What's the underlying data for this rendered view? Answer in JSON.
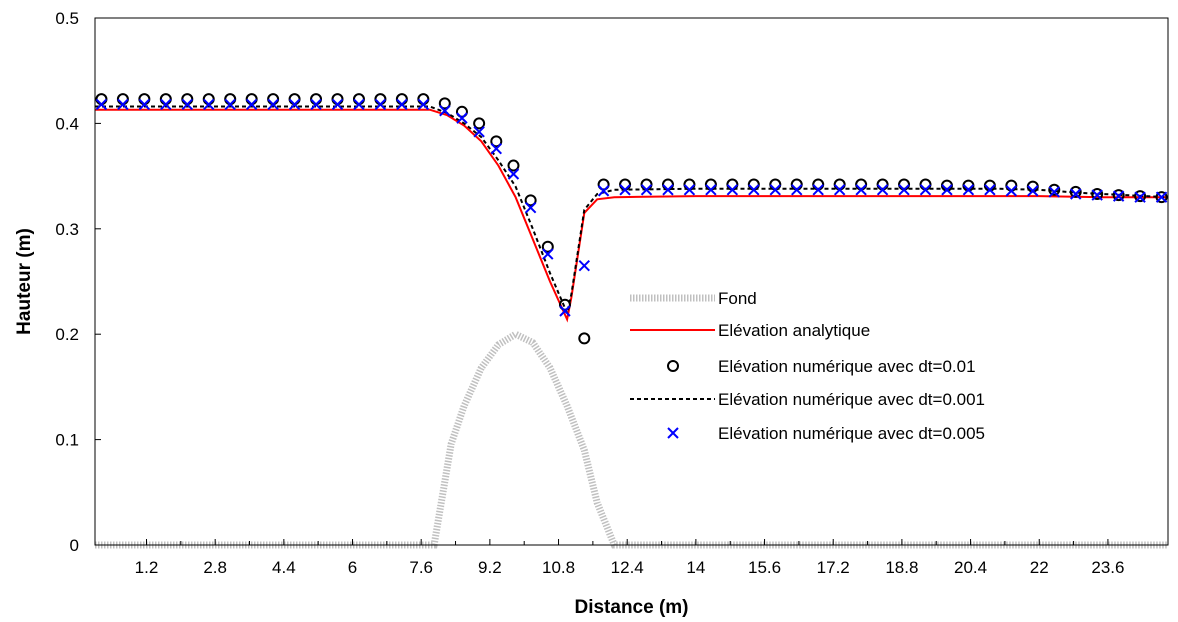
{
  "chart_data": {
    "type": "line",
    "title": "",
    "xlabel": "Distance (m)",
    "ylabel": "Hauteur (m)",
    "xlim": [
      0,
      25
    ],
    "ylim": [
      0,
      0.5
    ],
    "x_tick_labels": [
      "1.2",
      "2.8",
      "4.4",
      "6",
      "7.6",
      "9.2",
      "10.8",
      "12.4",
      "14",
      "15.6",
      "17.2",
      "18.8",
      "20.4",
      "22",
      "23.6"
    ],
    "y_tick_labels": [
      "0",
      "0.1",
      "0.2",
      "0.3",
      "0.4",
      "0.5"
    ],
    "legend_position": "center-right",
    "grid": false,
    "series": [
      {
        "name": "Fond",
        "style": "thick-gray-line",
        "color": "#c0c0c0",
        "x": [
          0,
          7.9,
          8.3,
          8.6,
          9.0,
          9.4,
          9.8,
          10.2,
          10.6,
          11.0,
          11.4,
          11.7,
          12.1,
          25
        ],
        "y": [
          0,
          0,
          0.096,
          0.132,
          0.168,
          0.19,
          0.2,
          0.192,
          0.168,
          0.132,
          0.09,
          0.04,
          0,
          0
        ]
      },
      {
        "name": "Elévation analytique",
        "style": "solid-line",
        "color": "#ff0000",
        "x": [
          0,
          7.8,
          8.2,
          8.6,
          9.0,
          9.4,
          9.8,
          10.2,
          10.6,
          11.0,
          11.1,
          11.4,
          11.7,
          12.1,
          14,
          18,
          22,
          23.5,
          25
        ],
        "y": [
          0.413,
          0.413,
          0.408,
          0.398,
          0.383,
          0.36,
          0.33,
          0.29,
          0.25,
          0.214,
          0.235,
          0.315,
          0.328,
          0.33,
          0.331,
          0.331,
          0.331,
          0.33,
          0.33
        ]
      },
      {
        "name": "Elévation numérique avec dt=0.01",
        "style": "circle-markers",
        "color": "#000000",
        "x": [
          0.15,
          0.65,
          1.15,
          1.65,
          2.15,
          2.65,
          3.15,
          3.65,
          4.15,
          4.65,
          5.15,
          5.65,
          6.15,
          6.65,
          7.15,
          7.65,
          8.15,
          8.55,
          8.95,
          9.35,
          9.75,
          10.15,
          10.55,
          10.95,
          11.4,
          11.85,
          12.35,
          12.85,
          13.35,
          13.85,
          14.35,
          14.85,
          15.35,
          15.85,
          16.35,
          16.85,
          17.35,
          17.85,
          18.35,
          18.85,
          19.35,
          19.85,
          20.35,
          20.85,
          21.35,
          21.85,
          22.35,
          22.85,
          23.35,
          23.85,
          24.35,
          24.85
        ],
        "y": [
          0.423,
          0.423,
          0.423,
          0.423,
          0.423,
          0.423,
          0.423,
          0.423,
          0.423,
          0.423,
          0.423,
          0.423,
          0.423,
          0.423,
          0.423,
          0.423,
          0.419,
          0.411,
          0.4,
          0.383,
          0.36,
          0.327,
          0.283,
          0.228,
          0.196,
          0.342,
          0.342,
          0.342,
          0.342,
          0.342,
          0.342,
          0.342,
          0.342,
          0.342,
          0.342,
          0.342,
          0.342,
          0.342,
          0.342,
          0.342,
          0.342,
          0.341,
          0.341,
          0.341,
          0.341,
          0.34,
          0.337,
          0.335,
          0.333,
          0.332,
          0.331,
          0.33
        ]
      },
      {
        "name": "Elévation numérique avec dt=0.001",
        "style": "dashed-line",
        "color": "#000000",
        "x": [
          0,
          7.8,
          8.2,
          8.6,
          9.0,
          9.4,
          9.8,
          10.2,
          10.6,
          11.0,
          11.1,
          11.4,
          11.7,
          12.1,
          14,
          18,
          21,
          22,
          23,
          24,
          25
        ],
        "y": [
          0.416,
          0.416,
          0.41,
          0.4,
          0.387,
          0.365,
          0.34,
          0.3,
          0.258,
          0.22,
          0.238,
          0.318,
          0.333,
          0.337,
          0.338,
          0.338,
          0.338,
          0.337,
          0.334,
          0.332,
          0.33
        ]
      },
      {
        "name": "Elévation numérique avec dt=0.005",
        "style": "x-markers",
        "color": "#0000ff",
        "x": [
          0.15,
          0.65,
          1.15,
          1.65,
          2.15,
          2.65,
          3.15,
          3.65,
          4.15,
          4.65,
          5.15,
          5.65,
          6.15,
          6.65,
          7.15,
          7.65,
          8.15,
          8.55,
          8.95,
          9.35,
          9.75,
          10.15,
          10.55,
          10.95,
          11.4,
          11.85,
          12.35,
          12.85,
          13.35,
          13.85,
          14.35,
          14.85,
          15.35,
          15.85,
          16.35,
          16.85,
          17.35,
          17.85,
          18.35,
          18.85,
          19.35,
          19.85,
          20.35,
          20.85,
          21.35,
          21.85,
          22.35,
          22.85,
          23.35,
          23.85,
          24.35,
          24.85
        ],
        "y": [
          0.418,
          0.418,
          0.418,
          0.418,
          0.418,
          0.418,
          0.418,
          0.418,
          0.418,
          0.418,
          0.418,
          0.418,
          0.418,
          0.418,
          0.418,
          0.418,
          0.412,
          0.405,
          0.392,
          0.376,
          0.352,
          0.32,
          0.276,
          0.222,
          0.265,
          0.336,
          0.337,
          0.337,
          0.337,
          0.337,
          0.337,
          0.337,
          0.337,
          0.337,
          0.337,
          0.337,
          0.337,
          0.337,
          0.337,
          0.337,
          0.337,
          0.337,
          0.337,
          0.337,
          0.336,
          0.336,
          0.335,
          0.333,
          0.332,
          0.331,
          0.33,
          0.33
        ]
      }
    ]
  }
}
